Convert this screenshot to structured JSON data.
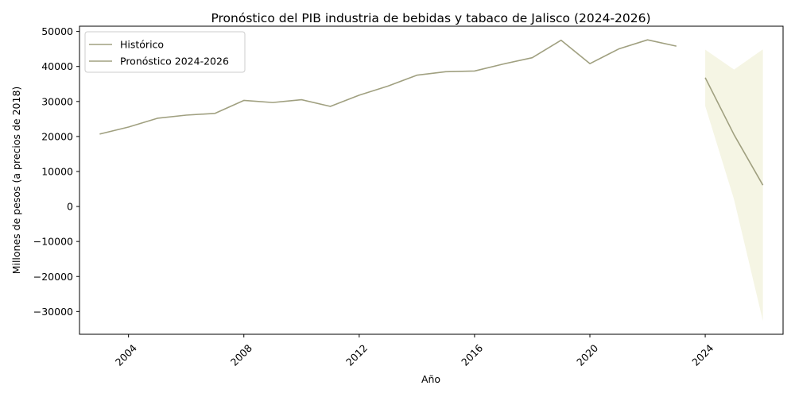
{
  "chart_data": {
    "type": "line",
    "title": "Pronóstico del PIB industria de bebidas y tabaco de Jalisco (2024-2026)",
    "xlabel": "Año",
    "ylabel": "Millones de pesos (a precios de 2018)",
    "xlim": [
      2002.3,
      2026.7
    ],
    "ylim": [
      -36500,
      51500
    ],
    "x_ticks": [
      2004,
      2008,
      2012,
      2016,
      2020,
      2024
    ],
    "y_ticks": [
      -30000,
      -20000,
      -10000,
      0,
      10000,
      20000,
      30000,
      40000,
      50000
    ],
    "grid": false,
    "legend_position": "top-left",
    "line_color": "#a0a080",
    "band_color": "#f5f5e4",
    "series": [
      {
        "name": "Histórico",
        "x": [
          2003,
          2004,
          2005,
          2006,
          2007,
          2008,
          2009,
          2010,
          2011,
          2012,
          2013,
          2014,
          2015,
          2016,
          2017,
          2018,
          2019,
          2020,
          2021,
          2022,
          2023
        ],
        "values": [
          20700,
          22700,
          25200,
          26100,
          26600,
          30300,
          29700,
          30500,
          28600,
          31800,
          34400,
          37500,
          38500,
          38700,
          40700,
          42500,
          47500,
          40800,
          45000,
          47600,
          45800
        ]
      },
      {
        "name": "Pronóstico 2024-2026",
        "x": [
          2024,
          2025,
          2026
        ],
        "values": [
          36800,
          20500,
          6100
        ],
        "lower": [
          28700,
          2000,
          -32700
        ],
        "upper": [
          44800,
          39100,
          44900
        ]
      }
    ]
  }
}
